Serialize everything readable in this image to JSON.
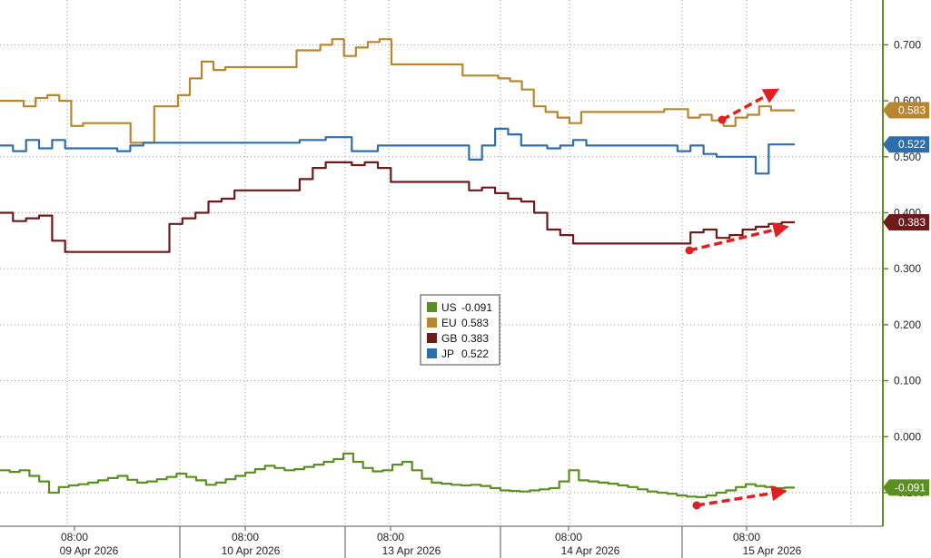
{
  "chart_data": {
    "type": "line",
    "title": "",
    "xlabel": "",
    "ylabel": "",
    "ylim": [
      -0.16,
      0.78
    ],
    "y_ticks": [
      "0.700",
      "0.600",
      "0.500",
      "0.400",
      "0.300",
      "0.200",
      "0.100",
      "0.000",
      "-0.100"
    ],
    "x_time_labels": [
      "08:00",
      "08:00",
      "08:00",
      "08:00",
      "08:00"
    ],
    "x_date_labels": [
      "09 Apr 2026",
      "10 Apr 2026",
      "13 Apr 2026",
      "14 Apr 2026",
      "15 Apr 2026"
    ],
    "grid": true,
    "legend_position": "center",
    "series": [
      {
        "name": "US",
        "last": "-0.091",
        "color": "#5b8f1f",
        "values": [
          -0.06,
          -0.063,
          -0.06,
          -0.07,
          -0.08,
          -0.1,
          -0.09,
          -0.087,
          -0.085,
          -0.082,
          -0.078,
          -0.074,
          -0.07,
          -0.077,
          -0.082,
          -0.08,
          -0.076,
          -0.072,
          -0.066,
          -0.072,
          -0.078,
          -0.086,
          -0.082,
          -0.076,
          -0.07,
          -0.064,
          -0.058,
          -0.052,
          -0.056,
          -0.06,
          -0.058,
          -0.054,
          -0.05,
          -0.045,
          -0.04,
          -0.03,
          -0.045,
          -0.056,
          -0.062,
          -0.06,
          -0.05,
          -0.045,
          -0.06,
          -0.075,
          -0.082,
          -0.084,
          -0.086,
          -0.087,
          -0.086,
          -0.088,
          -0.092,
          -0.096,
          -0.097,
          -0.098,
          -0.096,
          -0.094,
          -0.092,
          -0.08,
          -0.06,
          -0.078,
          -0.08,
          -0.082,
          -0.084,
          -0.087,
          -0.09,
          -0.094,
          -0.098,
          -0.1,
          -0.102,
          -0.105,
          -0.107,
          -0.108,
          -0.105,
          -0.1,
          -0.096,
          -0.09,
          -0.085,
          -0.088,
          -0.09,
          -0.092,
          -0.091,
          -0.091
        ]
      },
      {
        "name": "EU",
        "last": "0.583",
        "color": "#b8862e",
        "values": [
          0.6,
          0.6,
          0.59,
          0.605,
          0.61,
          0.6,
          0.555,
          0.56,
          0.56,
          0.56,
          0.56,
          0.525,
          0.525,
          0.59,
          0.59,
          0.61,
          0.64,
          0.67,
          0.655,
          0.66,
          0.66,
          0.66,
          0.66,
          0.66,
          0.66,
          0.69,
          0.69,
          0.7,
          0.71,
          0.68,
          0.695,
          0.705,
          0.71,
          0.665,
          0.665,
          0.665,
          0.665,
          0.665,
          0.665,
          0.645,
          0.645,
          0.645,
          0.64,
          0.635,
          0.62,
          0.59,
          0.58,
          0.57,
          0.56,
          0.58,
          0.58,
          0.58,
          0.58,
          0.58,
          0.58,
          0.58,
          0.585,
          0.585,
          0.57,
          0.575,
          0.565,
          0.555,
          0.57,
          0.575,
          0.59,
          0.583,
          0.583,
          0.583
        ]
      },
      {
        "name": "GB",
        "last": "0.383",
        "color": "#6f1a1a",
        "values": [
          0.4,
          0.385,
          0.39,
          0.395,
          0.35,
          0.33,
          0.33,
          0.33,
          0.33,
          0.33,
          0.33,
          0.33,
          0.33,
          0.38,
          0.39,
          0.4,
          0.42,
          0.425,
          0.44,
          0.44,
          0.44,
          0.44,
          0.44,
          0.46,
          0.48,
          0.49,
          0.49,
          0.485,
          0.49,
          0.48,
          0.455,
          0.455,
          0.455,
          0.455,
          0.455,
          0.455,
          0.44,
          0.445,
          0.435,
          0.425,
          0.42,
          0.4,
          0.37,
          0.36,
          0.345,
          0.345,
          0.345,
          0.345,
          0.345,
          0.345,
          0.345,
          0.345,
          0.345,
          0.365,
          0.37,
          0.355,
          0.36,
          0.37,
          0.375,
          0.38,
          0.383,
          0.383
        ]
      },
      {
        "name": "JP",
        "last": "0.522",
        "color": "#2d6fad",
        "values": [
          0.52,
          0.51,
          0.53,
          0.515,
          0.53,
          0.515,
          0.515,
          0.515,
          0.515,
          0.51,
          0.52,
          0.525,
          0.525,
          0.525,
          0.525,
          0.525,
          0.525,
          0.525,
          0.525,
          0.525,
          0.525,
          0.525,
          0.525,
          0.53,
          0.53,
          0.535,
          0.535,
          0.51,
          0.51,
          0.52,
          0.52,
          0.52,
          0.52,
          0.52,
          0.52,
          0.52,
          0.495,
          0.52,
          0.55,
          0.54,
          0.52,
          0.52,
          0.515,
          0.52,
          0.53,
          0.52,
          0.52,
          0.52,
          0.52,
          0.52,
          0.52,
          0.52,
          0.51,
          0.52,
          0.505,
          0.5,
          0.5,
          0.5,
          0.47,
          0.522,
          0.522,
          0.522
        ]
      }
    ],
    "annotations": [
      {
        "type": "arrow",
        "label": "red dashed arrow",
        "x": [
          0.6,
          0.85
        ]
      }
    ]
  }
}
